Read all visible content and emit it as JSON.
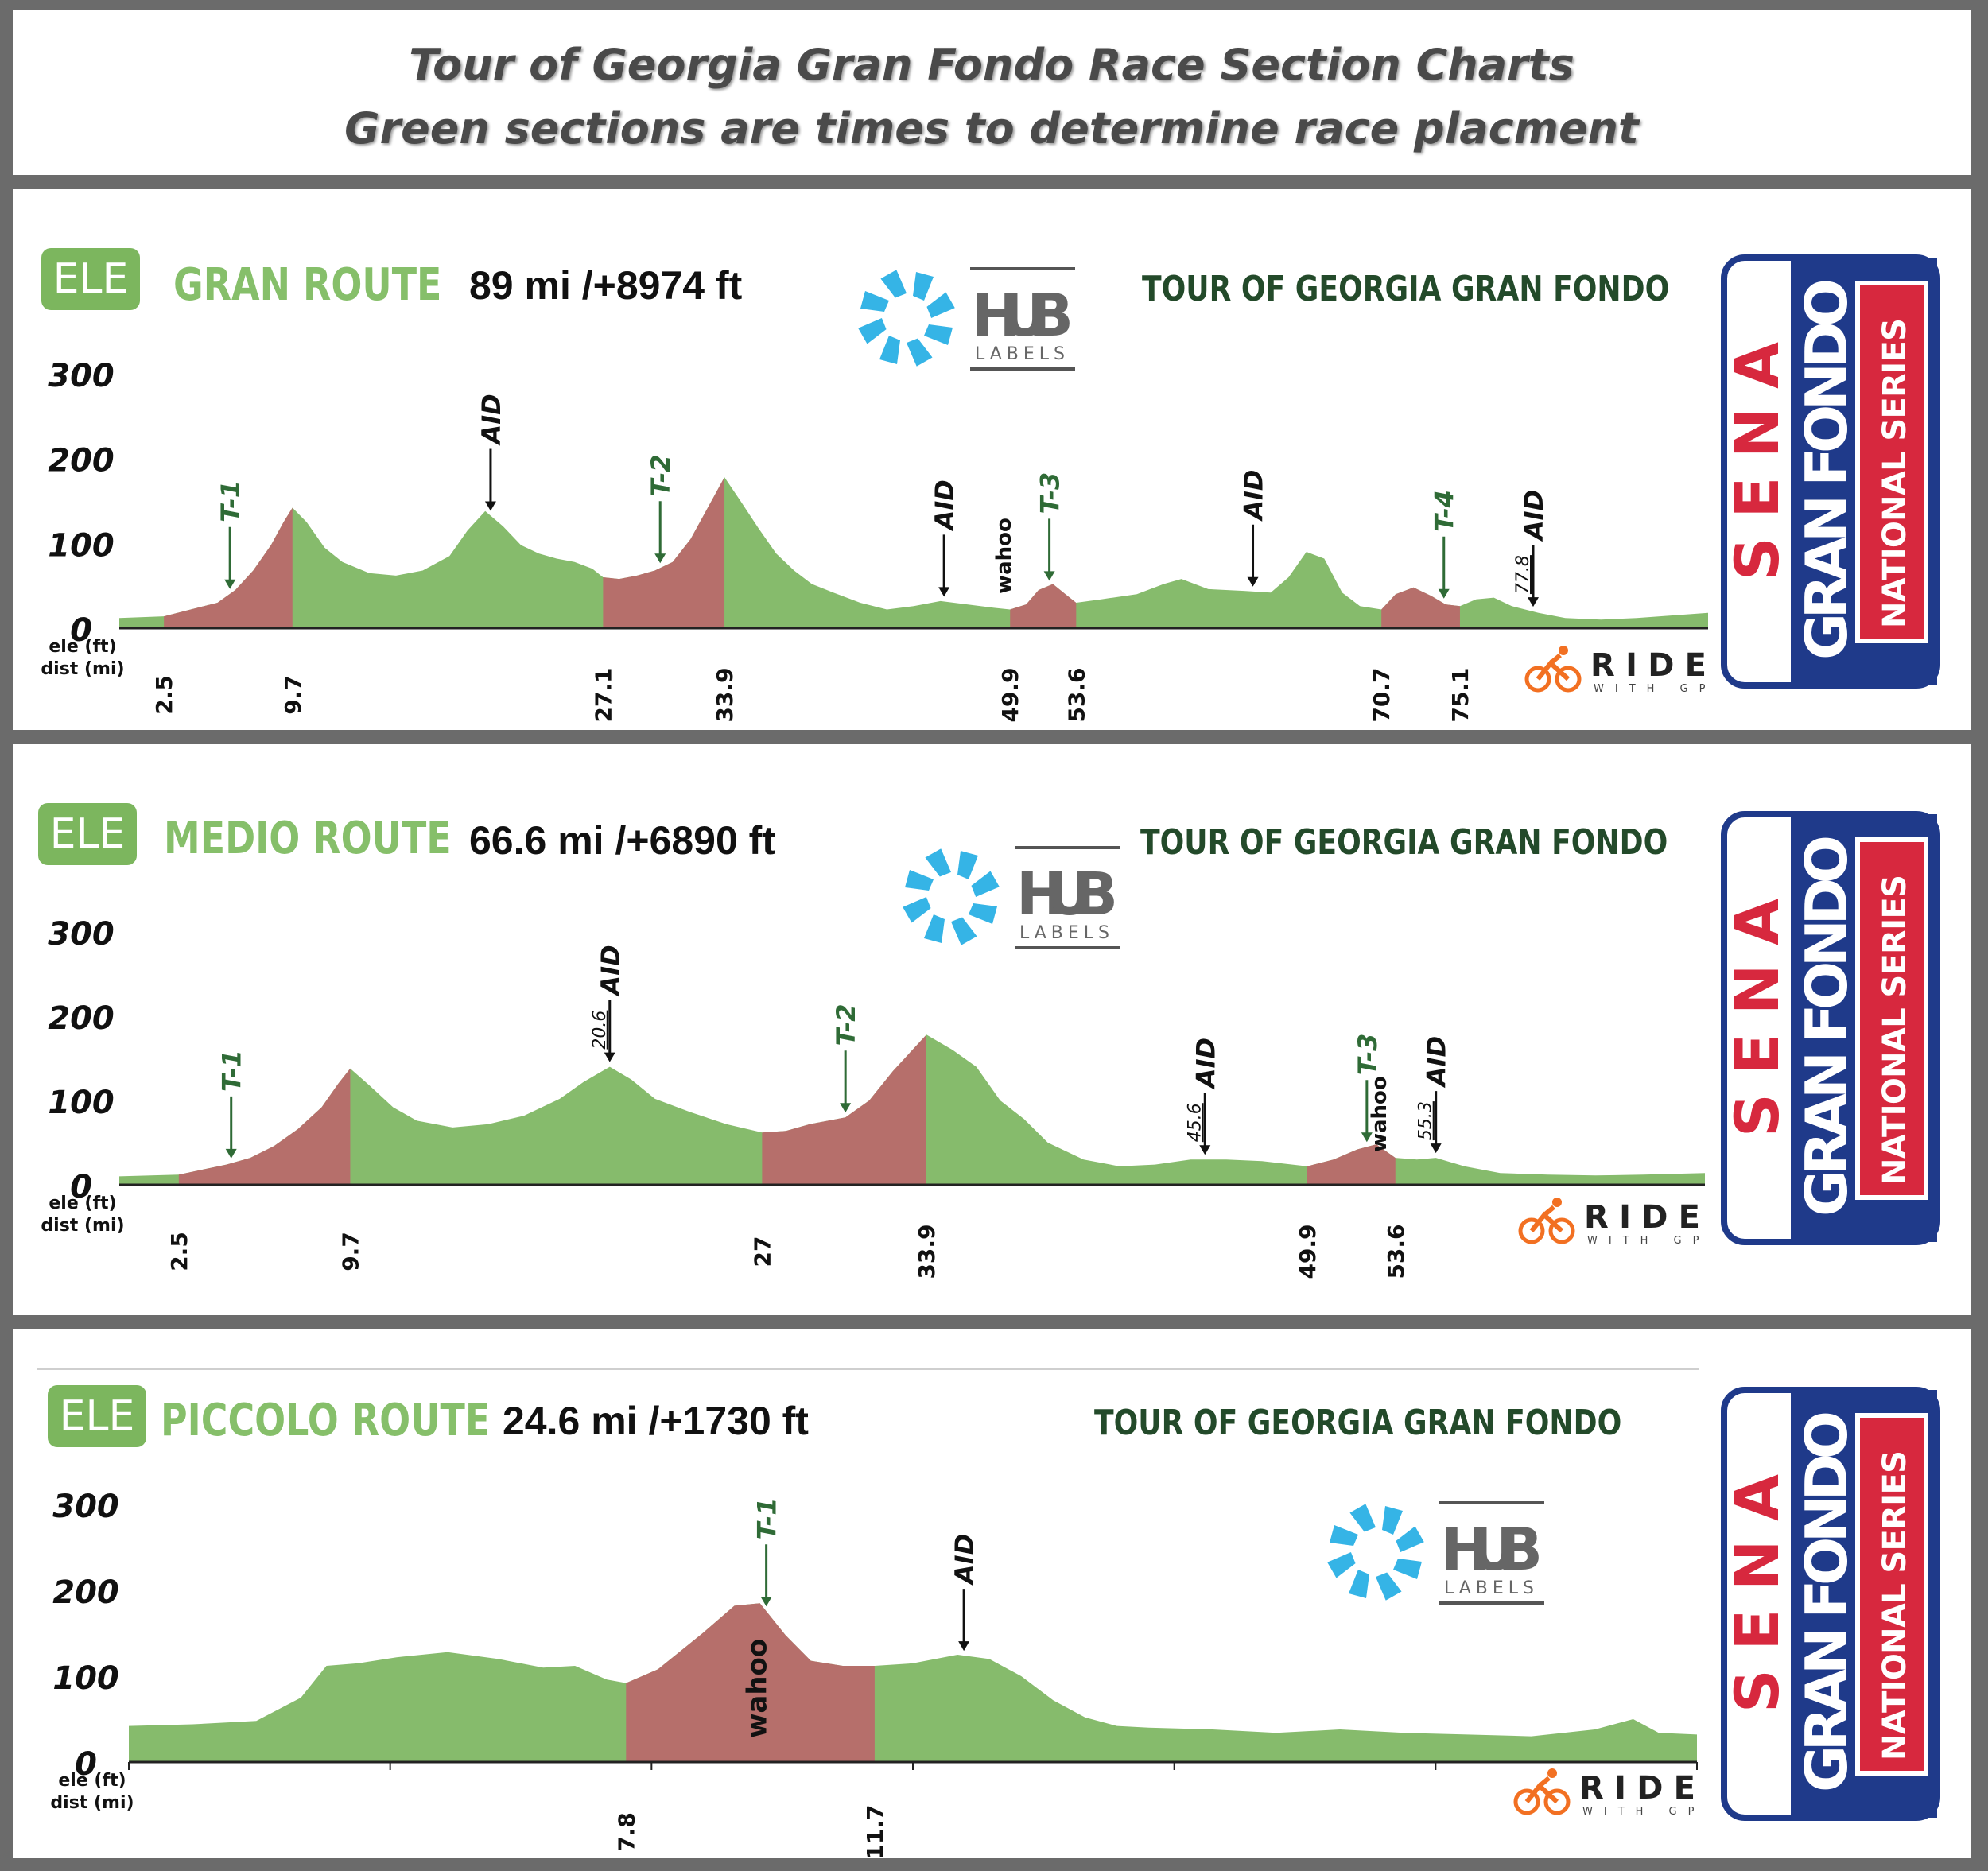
{
  "header": {
    "title_line1": "Tour of Georgia Gran Fondo Race Section Charts",
    "title_line2": "Green sections are times to determine race placment"
  },
  "logos": {
    "ele_text": "ELE",
    "hub_text": "HUB",
    "hub_sub": "LABELS",
    "sena_text": "SENA",
    "gran_fondo_text": "GRAN FONDO",
    "national_series_text": "NATIONAL SERIES",
    "ride_text": "RIDE",
    "ride_sub": "WITH GPS",
    "wahoo_text": "wahoo"
  },
  "colors": {
    "green": "#86bb6c",
    "red": "#b66f6b",
    "title_green": "#86bf6a",
    "event_green": "#234a2a",
    "hub_blue": "#35b4e6",
    "sena_navy": "#1f3a8a",
    "sena_red": "#d7283e",
    "ride_orange": "#f27022"
  },
  "routes": [
    {
      "id": "gran",
      "name": "GRAN ROUTE",
      "stats": "89 mi /+8974 ft",
      "event": "TOUR OF GEORGIA GRAN FONDO"
    },
    {
      "id": "medio",
      "name": "MEDIO ROUTE",
      "stats": "66.6 mi /+6890 ft",
      "event": "TOUR OF GEORGIA GRAN FONDO"
    },
    {
      "id": "piccolo",
      "name": "PICCOLO ROUTE",
      "stats": "24.6 mi /+1730 ft",
      "event": "TOUR OF GEORGIA GRAN FONDO"
    }
  ],
  "chart_data": [
    {
      "type": "area",
      "title": "GRAN ROUTE",
      "ylabel": "ele (ft)",
      "xlabel": "dist (mi)",
      "y_ticks": [
        "300",
        "200",
        "100",
        "0"
      ],
      "ylim": [
        0,
        300
      ],
      "xlim": [
        0,
        89
      ],
      "x_ticks": [
        "2.5",
        "9.7",
        "27.1",
        "33.9",
        "49.9",
        "53.6",
        "70.7",
        "75.1"
      ],
      "profile": {
        "x": [
          0,
          2.5,
          4,
          5.5,
          6.5,
          7.5,
          8.5,
          9.2,
          9.7,
          10.5,
          11.5,
          12.5,
          14,
          15.5,
          17,
          18.5,
          19.5,
          20.5,
          21.5,
          22.5,
          23.5,
          24.5,
          25.5,
          26.5,
          27.1,
          28,
          29,
          30,
          31,
          32,
          33.3,
          33.9,
          34.8,
          35.8,
          36.8,
          37.8,
          38.8,
          40,
          41.5,
          43,
          44.5,
          46,
          47.5,
          49,
          49.9,
          50.8,
          51.5,
          52.3,
          53,
          53.6,
          55,
          57,
          58.5,
          59.5,
          61,
          63,
          64.5,
          65.5,
          66.5,
          67.5,
          68.5,
          69.5,
          70.7,
          71.5,
          72.5,
          73.5,
          74.3,
          75.1,
          76,
          77,
          78,
          79.5,
          81,
          83,
          85,
          87,
          89
        ],
        "y": [
          12,
          14,
          22,
          30,
          45,
          68,
          98,
          125,
          142,
          125,
          95,
          78,
          65,
          62,
          68,
          85,
          115,
          138,
          120,
          98,
          88,
          82,
          78,
          70,
          60,
          58,
          62,
          68,
          78,
          105,
          155,
          178,
          150,
          118,
          88,
          68,
          52,
          42,
          30,
          22,
          26,
          32,
          28,
          24,
          22,
          28,
          45,
          52,
          40,
          30,
          34,
          40,
          52,
          58,
          46,
          44,
          42,
          60,
          90,
          82,
          42,
          26,
          22,
          40,
          48,
          38,
          28,
          26,
          34,
          36,
          26,
          18,
          12,
          10,
          12,
          15,
          18
        ]
      },
      "timed_sections": [
        {
          "label": "T-1",
          "start": 2.5,
          "end": 9.7
        },
        {
          "label": "T-2",
          "start": 27.1,
          "end": 33.9
        },
        {
          "label": "T-3",
          "start": 49.9,
          "end": 53.6
        },
        {
          "label": "T-4",
          "start": 70.7,
          "end": 75.1
        }
      ],
      "markers": [
        {
          "label": "T-1",
          "x": 6.2,
          "kind": "timed"
        },
        {
          "label": "AID",
          "x": 20.8,
          "kind": "aid"
        },
        {
          "label": "T-2",
          "x": 30.3,
          "kind": "timed"
        },
        {
          "label": "AID",
          "x": 46.2,
          "kind": "aid"
        },
        {
          "label": "T-3",
          "x": 52.1,
          "kind": "timed"
        },
        {
          "label": "AID",
          "x": 63.5,
          "kind": "aid"
        },
        {
          "label": "T-4",
          "x": 74.2,
          "kind": "timed"
        },
        {
          "label": "AID",
          "x": 79.2,
          "kind": "aid",
          "km": "77.8"
        }
      ]
    },
    {
      "type": "area",
      "title": "MEDIO ROUTE",
      "ylabel": "ele (ft)",
      "xlabel": "dist (mi)",
      "y_ticks": [
        "300",
        "200",
        "100",
        "0"
      ],
      "ylim": [
        0,
        300
      ],
      "xlim": [
        0,
        66.6
      ],
      "x_ticks": [
        "2.5",
        "9.7",
        "27",
        "33.9",
        "49.9",
        "53.6"
      ],
      "profile": {
        "x": [
          0,
          2.5,
          3.5,
          4.5,
          5.5,
          6.5,
          7.5,
          8.5,
          9.2,
          9.7,
          10.5,
          11.5,
          12.5,
          14,
          15.5,
          17,
          18.5,
          19.5,
          20.6,
          21.5,
          22.5,
          24,
          25.5,
          27,
          28,
          29,
          30.5,
          31.5,
          32.5,
          33.9,
          35,
          36,
          37,
          38,
          39,
          40.5,
          42,
          43.5,
          45,
          46.5,
          48,
          49.9,
          51,
          52,
          52.8,
          53.6,
          54.5,
          55.3,
          56.5,
          58,
          60,
          62,
          64,
          66.6
        ],
        "y": [
          10,
          12,
          18,
          24,
          32,
          46,
          66,
          92,
          120,
          138,
          118,
          92,
          76,
          68,
          72,
          82,
          102,
          122,
          140,
          125,
          102,
          86,
          72,
          62,
          64,
          72,
          80,
          100,
          135,
          178,
          160,
          140,
          100,
          78,
          50,
          30,
          22,
          24,
          30,
          30,
          28,
          22,
          30,
          42,
          48,
          32,
          30,
          32,
          22,
          14,
          12,
          11,
          12,
          14
        ]
      },
      "timed_sections": [
        {
          "label": "T-1",
          "start": 2.5,
          "end": 9.7
        },
        {
          "label": "T-2",
          "start": 27,
          "end": 33.9
        },
        {
          "label": "T-3",
          "start": 49.9,
          "end": 53.6
        }
      ],
      "markers": [
        {
          "label": "T-1",
          "x": 4.7,
          "kind": "timed"
        },
        {
          "label": "AID",
          "x": 20.6,
          "kind": "aid",
          "km": "20.6"
        },
        {
          "label": "T-2",
          "x": 30.5,
          "kind": "timed"
        },
        {
          "label": "AID",
          "x": 45.6,
          "kind": "aid",
          "km": "45.6"
        },
        {
          "label": "T-3",
          "x": 52.4,
          "kind": "timed"
        },
        {
          "label": "AID",
          "x": 55.3,
          "kind": "aid",
          "km": "55.3"
        }
      ]
    },
    {
      "type": "area",
      "title": "PICCOLO ROUTE",
      "ylabel": "ele (ft)",
      "xlabel": "dist (mi)",
      "y_ticks": [
        "300",
        "200",
        "100",
        "0"
      ],
      "ylim": [
        0,
        300
      ],
      "xlim": [
        0,
        24.6
      ],
      "x_ticks": [
        "7.8",
        "11.7"
      ],
      "profile": {
        "x": [
          0,
          1,
          2,
          2.7,
          3.1,
          3.6,
          4.2,
          5,
          5.8,
          6.5,
          7,
          7.5,
          7.8,
          8.3,
          9,
          9.5,
          9.9,
          10.3,
          10.7,
          11.2,
          11.7,
          12.3,
          13,
          13.5,
          14,
          14.5,
          15,
          15.5,
          16,
          17,
          18,
          19,
          20,
          21,
          22,
          23,
          23.6,
          24,
          24.6
        ],
        "y": [
          42,
          44,
          48,
          75,
          112,
          115,
          122,
          128,
          120,
          110,
          112,
          96,
          92,
          108,
          150,
          182,
          185,
          148,
          118,
          112,
          112,
          115,
          125,
          120,
          100,
          72,
          52,
          42,
          40,
          38,
          34,
          38,
          34,
          32,
          30,
          38,
          50,
          34,
          32
        ]
      },
      "timed_sections": [
        {
          "label": "T-1",
          "start": 7.8,
          "end": 11.7
        }
      ],
      "markers": [
        {
          "label": "T-1",
          "x": 10,
          "kind": "timed"
        },
        {
          "label": "AID",
          "x": 13.1,
          "kind": "aid"
        }
      ]
    }
  ]
}
